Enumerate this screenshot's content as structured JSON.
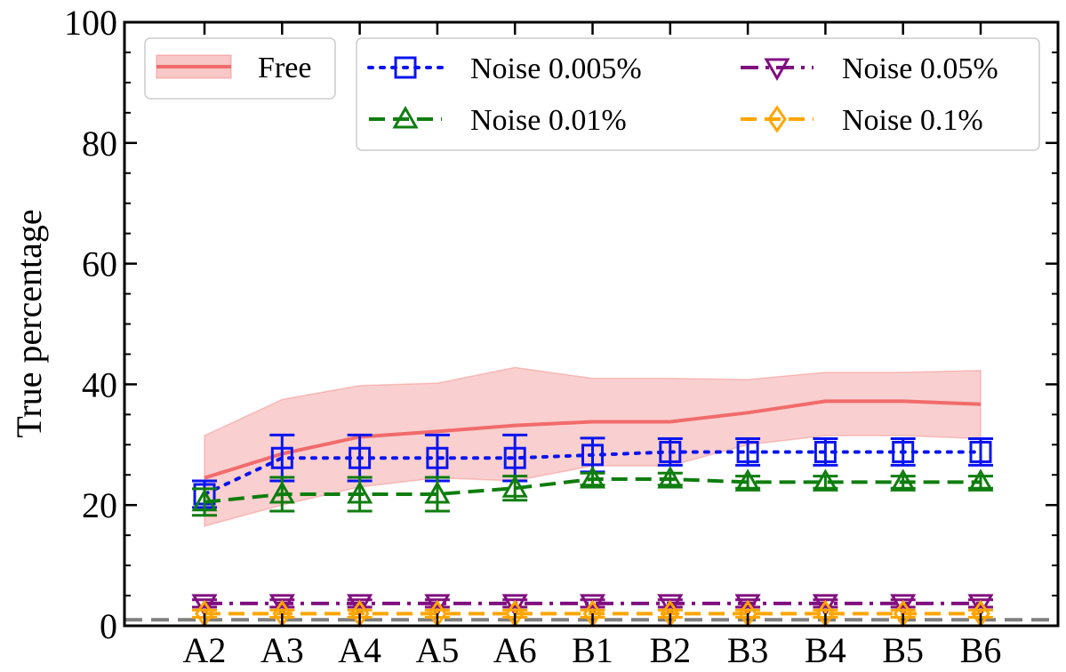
{
  "chart_data": {
    "type": "line",
    "title": "",
    "xlabel": "",
    "ylabel": "True percentage",
    "categories": [
      "A2",
      "A3",
      "A4",
      "A5",
      "A6",
      "B1",
      "B2",
      "B3",
      "B4",
      "B5",
      "B6"
    ],
    "ylim": [
      0,
      100
    ],
    "yticks": [
      "0",
      "20",
      "40",
      "60",
      "80",
      "100"
    ],
    "grid": false,
    "legend_placement": "top",
    "reference_line": {
      "y": 1.0,
      "style": "dashed",
      "color": "#808080"
    },
    "series": [
      {
        "name": "Free",
        "style": "solid",
        "marker": "none",
        "color": "#f26b6b",
        "band_color": "#f8c7c7",
        "values": [
          24.5,
          28.5,
          31.3,
          32.2,
          33.2,
          33.8,
          33.8,
          35.3,
          37.2,
          37.2,
          36.7
        ],
        "lower": [
          16.5,
          20.0,
          23.0,
          24.5,
          24.0,
          26.5,
          26.5,
          30.0,
          31.5,
          31.5,
          31.0
        ],
        "upper": [
          31.5,
          37.5,
          39.8,
          40.2,
          42.8,
          41.0,
          41.0,
          40.8,
          42.0,
          42.0,
          42.3
        ]
      },
      {
        "name": "Noise 0.005%",
        "style": "dotted",
        "marker": "square",
        "color": "#0a14f0",
        "values": [
          21.8,
          27.8,
          27.8,
          27.8,
          27.8,
          28.3,
          28.8,
          28.8,
          28.8,
          28.8,
          28.8
        ],
        "err": [
          2.2,
          3.8,
          3.8,
          3.8,
          3.8,
          2.8,
          2.2,
          2.2,
          2.2,
          2.2,
          2.2
        ]
      },
      {
        "name": "Noise 0.01%",
        "style": "dashed",
        "marker": "triangle-up",
        "color": "#0f7d0f",
        "values": [
          20.5,
          21.8,
          21.8,
          21.8,
          22.8,
          24.3,
          24.3,
          23.8,
          23.8,
          23.8,
          23.8
        ],
        "err": [
          2.2,
          2.8,
          2.8,
          2.8,
          2.0,
          1.0,
          1.0,
          1.0,
          1.0,
          1.0,
          1.0
        ]
      },
      {
        "name": "Noise 0.05%",
        "style": "dashdot",
        "marker": "triangle-down",
        "color": "#800f80",
        "values": [
          3.7,
          3.7,
          3.7,
          3.7,
          3.7,
          3.7,
          3.7,
          3.7,
          3.7,
          3.7,
          3.7
        ],
        "err": [
          0.6,
          0.6,
          0.6,
          0.6,
          0.6,
          0.6,
          0.6,
          0.6,
          0.6,
          0.6,
          0.6
        ]
      },
      {
        "name": "Noise 0.1%",
        "style": "dashed",
        "marker": "diamond",
        "color": "#ffa500",
        "values": [
          2.0,
          2.0,
          2.0,
          2.0,
          2.0,
          2.0,
          2.0,
          2.0,
          2.0,
          2.0,
          2.0
        ],
        "err": [
          0.6,
          0.6,
          0.6,
          0.6,
          0.6,
          0.6,
          0.6,
          0.6,
          0.6,
          0.6,
          0.6
        ]
      }
    ]
  }
}
